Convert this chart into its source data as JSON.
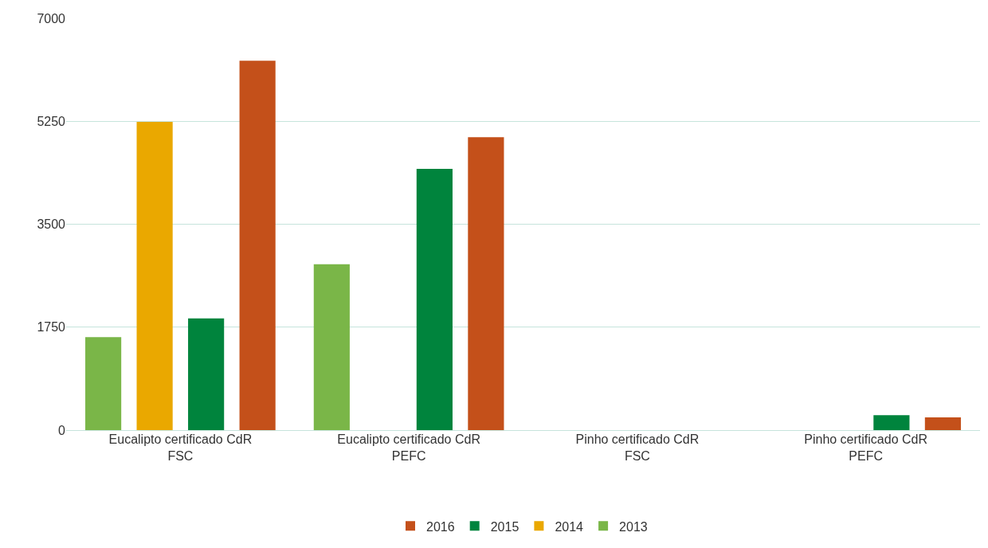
{
  "chart_data": {
    "type": "bar",
    "categories": [
      "Eucalipto certificado CdR\nFSC",
      "Eucalipto certificado CdR\nPEFC",
      "Pinho certificado CdR\nFSC",
      "Pinho certificado CdR\nPEFC"
    ],
    "series": [
      {
        "name": "2013",
        "color": "#7ab648",
        "values": [
          1580,
          2820,
          0,
          0
        ]
      },
      {
        "name": "2014",
        "color": "#eaa800",
        "values": [
          5240,
          0,
          0,
          0
        ]
      },
      {
        "name": "2015",
        "color": "#00843d",
        "values": [
          1900,
          4440,
          0,
          255
        ]
      },
      {
        "name": "2016",
        "color": "#c4501a",
        "values": [
          6280,
          4980,
          0,
          215
        ]
      }
    ],
    "ylim": [
      0,
      7000
    ],
    "yticks": [
      0,
      1750,
      3500,
      5250,
      7000
    ],
    "grid": "y",
    "legend": "bottom"
  }
}
